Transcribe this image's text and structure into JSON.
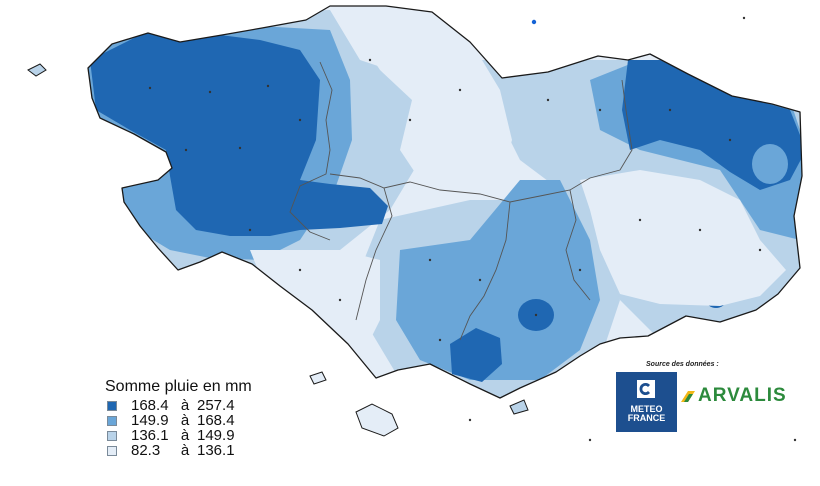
{
  "legend": {
    "title": "Somme pluie en mm",
    "separator": "à",
    "classes": [
      {
        "low": "168.4",
        "high": "257.4",
        "color": "#1f67b2"
      },
      {
        "low": "149.9",
        "high": "168.4",
        "color": "#6aa6d8"
      },
      {
        "low": "136.1",
        "high": "149.9",
        "color": "#b9d3e9"
      },
      {
        "low": "82.3",
        "high": "136.1",
        "color": "#e4edf7"
      }
    ]
  },
  "source": {
    "label": "Source des données :",
    "meteo_france_line1": "METEO",
    "meteo_france_line2": "FRANCE",
    "arvalis": "ARVALIS",
    "colors": {
      "meteo_france": "#1d4f8f",
      "arvalis_green": "#2c8a3c",
      "arvalis_yellow": "#f2b716"
    }
  },
  "icons": {
    "meteo_france_mark": "meteo-france-mark-icon",
    "arvalis_leaf": "arvalis-leaf-icon"
  }
}
